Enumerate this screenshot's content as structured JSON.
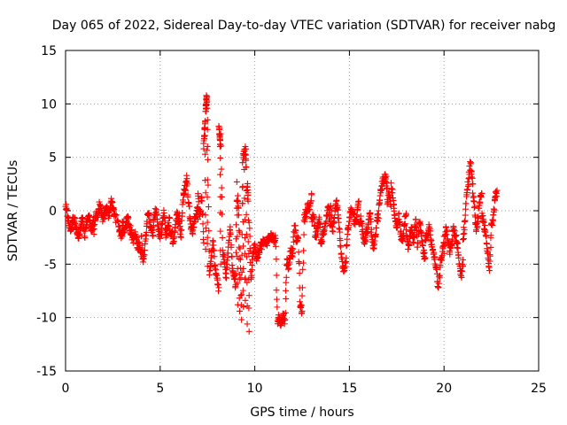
{
  "chart_data": {
    "type": "scatter",
    "title": "Day 065 of 2022, Sidereal Day-to-day VTEC variation (SDTVAR) for receiver nabg",
    "xlabel": "GPS time / hours",
    "ylabel": "SDTVAR / TECUs",
    "xlim": [
      0,
      25
    ],
    "ylim": [
      -15,
      15
    ],
    "xticks": [
      0,
      5,
      10,
      15,
      20,
      25
    ],
    "yticks": [
      -15,
      -10,
      -5,
      0,
      5,
      10,
      15
    ],
    "grid": true,
    "marker": "+",
    "color": "#ff0000",
    "series": [
      {
        "name": "SDTVAR",
        "points": [
          [
            0.0,
            0.4
          ],
          [
            0.1,
            -0.5
          ],
          [
            0.2,
            -1.4
          ],
          [
            0.3,
            -1.8
          ],
          [
            0.4,
            -0.6
          ],
          [
            0.5,
            -1.2
          ],
          [
            0.6,
            -2.1
          ],
          [
            0.7,
            -2.6
          ],
          [
            0.8,
            -1.5
          ],
          [
            0.9,
            -0.8
          ],
          [
            1.0,
            -2.4
          ],
          [
            1.1,
            -1.3
          ],
          [
            1.2,
            -0.5
          ],
          [
            1.3,
            -1.0
          ],
          [
            1.4,
            -1.9
          ],
          [
            1.5,
            -0.9
          ],
          [
            1.6,
            -0.1
          ],
          [
            1.7,
            -0.6
          ],
          [
            1.8,
            0.6
          ],
          [
            1.9,
            -0.4
          ],
          [
            2.0,
            -0.8
          ],
          [
            2.1,
            -0.1
          ],
          [
            2.2,
            0.3
          ],
          [
            2.3,
            -0.5
          ],
          [
            2.4,
            0.9
          ],
          [
            2.5,
            0.2
          ],
          [
            2.6,
            -0.3
          ],
          [
            2.8,
            -1.5
          ],
          [
            2.9,
            -2.0
          ],
          [
            3.0,
            -2.4
          ],
          [
            3.1,
            -1.8
          ],
          [
            3.2,
            -1.1
          ],
          [
            3.3,
            -0.6
          ],
          [
            3.4,
            -1.6
          ],
          [
            3.5,
            -2.3
          ],
          [
            3.6,
            -2.7
          ],
          [
            3.7,
            -2.2
          ],
          [
            3.8,
            -3.5
          ],
          [
            3.9,
            -3.0
          ],
          [
            4.0,
            -4.3
          ],
          [
            4.1,
            -4.8
          ],
          [
            4.2,
            -3.1
          ],
          [
            4.3,
            -1.0
          ],
          [
            4.4,
            -0.3
          ],
          [
            4.5,
            -1.5
          ],
          [
            4.6,
            -2.3
          ],
          [
            4.7,
            -0.4
          ],
          [
            4.8,
            0.1
          ],
          [
            4.9,
            -1.8
          ],
          [
            5.0,
            -2.6
          ],
          [
            5.1,
            -1.3
          ],
          [
            5.2,
            -0.2
          ],
          [
            5.3,
            -2.5
          ],
          [
            5.4,
            -1.5
          ],
          [
            5.5,
            -0.7
          ],
          [
            5.6,
            -2.0
          ],
          [
            5.7,
            -2.9
          ],
          [
            5.8,
            -1.3
          ],
          [
            5.9,
            -0.3
          ],
          [
            6.0,
            -1.2
          ],
          [
            6.1,
            -2.5
          ],
          [
            6.2,
            1.0
          ],
          [
            6.3,
            1.9
          ],
          [
            6.4,
            2.8
          ],
          [
            6.5,
            0.7
          ],
          [
            6.6,
            -0.8
          ],
          [
            6.7,
            -2.1
          ],
          [
            6.8,
            -1.0
          ],
          [
            6.9,
            -0.3
          ],
          [
            7.0,
            0.2
          ],
          [
            7.1,
            -0.5
          ],
          [
            7.2,
            1.3
          ],
          [
            7.3,
            -3.0
          ],
          [
            7.4,
            -3.6
          ],
          [
            7.5,
            -5.2
          ],
          [
            7.6,
            -6.0
          ],
          [
            7.7,
            -4.4
          ],
          [
            7.8,
            -2.9
          ],
          [
            7.9,
            -5.4
          ],
          [
            8.0,
            -6.3
          ],
          [
            8.1,
            -7.2
          ],
          [
            8.2,
            -5.0
          ],
          [
            8.3,
            -3.7
          ],
          [
            8.4,
            -4.9
          ],
          [
            8.5,
            -6.3
          ],
          [
            8.6,
            -3.4
          ],
          [
            8.7,
            -1.5
          ],
          [
            8.8,
            -5.1
          ],
          [
            8.9,
            -6.2
          ],
          [
            9.0,
            -6.9
          ],
          [
            9.1,
            -8.8
          ],
          [
            9.2,
            -9.4
          ],
          [
            9.3,
            -10.2
          ],
          [
            9.4,
            -9.0
          ],
          [
            9.5,
            -8.4
          ],
          [
            9.6,
            -10.6
          ],
          [
            9.7,
            -11.3
          ],
          [
            9.8,
            -6.4
          ],
          [
            9.9,
            -4.0
          ],
          [
            10.0,
            -3.2
          ],
          [
            10.1,
            -4.5
          ],
          [
            10.2,
            -3.7
          ],
          [
            10.3,
            -3.3
          ],
          [
            10.4,
            -3.1
          ],
          [
            10.5,
            -2.9
          ],
          [
            10.7,
            -2.8
          ],
          [
            10.8,
            -2.5
          ],
          [
            10.9,
            -2.3
          ],
          [
            11.0,
            -2.9
          ],
          [
            11.1,
            -2.6
          ],
          [
            11.2,
            -10.3
          ],
          [
            11.3,
            -10.0
          ],
          [
            11.4,
            -10.6
          ],
          [
            11.5,
            -9.8
          ],
          [
            11.6,
            -10.2
          ],
          [
            11.7,
            -4.5
          ],
          [
            11.8,
            -5.4
          ],
          [
            11.9,
            -3.5
          ],
          [
            12.0,
            -4.0
          ],
          [
            12.1,
            -1.4
          ],
          [
            12.2,
            -2.9
          ],
          [
            12.3,
            -2.6
          ],
          [
            12.4,
            -9.0
          ],
          [
            12.5,
            -9.4
          ],
          [
            12.6,
            -0.9
          ],
          [
            12.7,
            -0.2
          ],
          [
            12.8,
            0.5
          ],
          [
            12.9,
            0.1
          ],
          [
            13.0,
            1.5
          ],
          [
            13.1,
            -0.4
          ],
          [
            13.2,
            -2.3
          ],
          [
            13.3,
            -1.9
          ],
          [
            13.4,
            -0.6
          ],
          [
            13.5,
            -3.0
          ],
          [
            13.6,
            -2.3
          ],
          [
            13.7,
            -1.6
          ],
          [
            13.8,
            -0.5
          ],
          [
            13.9,
            0.3
          ],
          [
            14.0,
            -1.4
          ],
          [
            14.1,
            -1.9
          ],
          [
            14.2,
            -0.7
          ],
          [
            14.3,
            0.9
          ],
          [
            14.4,
            -0.4
          ],
          [
            14.5,
            -2.6
          ],
          [
            14.6,
            -4.4
          ],
          [
            14.7,
            -5.7
          ],
          [
            14.8,
            -4.9
          ],
          [
            14.9,
            -2.2
          ],
          [
            15.0,
            -1.0
          ],
          [
            15.1,
            0.1
          ],
          [
            15.2,
            -0.3
          ],
          [
            15.3,
            -1.3
          ],
          [
            15.4,
            -0.4
          ],
          [
            15.5,
            0.9
          ],
          [
            15.6,
            -0.5
          ],
          [
            15.7,
            -1.8
          ],
          [
            15.8,
            -3.1
          ],
          [
            15.9,
            -2.1
          ],
          [
            16.0,
            -1.3
          ],
          [
            16.1,
            -0.2
          ],
          [
            16.2,
            -2.7
          ],
          [
            16.3,
            -3.5
          ],
          [
            16.4,
            -2.2
          ],
          [
            16.5,
            -0.3
          ],
          [
            16.6,
            1.0
          ],
          [
            16.7,
            2.3
          ],
          [
            16.8,
            2.8
          ],
          [
            16.9,
            3.1
          ],
          [
            17.0,
            2.1
          ],
          [
            17.1,
            1.5
          ],
          [
            17.2,
            0.4
          ],
          [
            17.3,
            1.2
          ],
          [
            17.4,
            -0.7
          ],
          [
            17.5,
            -1.6
          ],
          [
            17.6,
            -0.3
          ],
          [
            17.7,
            -2.0
          ],
          [
            17.8,
            -2.6
          ],
          [
            17.9,
            -1.4
          ],
          [
            18.0,
            -0.4
          ],
          [
            18.1,
            -3.6
          ],
          [
            18.2,
            -2.3
          ],
          [
            18.3,
            -1.6
          ],
          [
            18.4,
            -3.0
          ],
          [
            18.5,
            -0.8
          ],
          [
            18.6,
            -3.4
          ],
          [
            18.7,
            -1.2
          ],
          [
            18.8,
            -2.0
          ],
          [
            18.9,
            -3.9
          ],
          [
            19.0,
            -4.4
          ],
          [
            19.1,
            -2.5
          ],
          [
            19.2,
            -1.3
          ],
          [
            19.3,
            -2.9
          ],
          [
            19.4,
            -3.7
          ],
          [
            19.5,
            -4.3
          ],
          [
            19.6,
            -5.5
          ],
          [
            19.7,
            -7.2
          ],
          [
            19.8,
            -5.1
          ],
          [
            19.9,
            -4.2
          ],
          [
            20.0,
            -2.4
          ],
          [
            20.1,
            -1.5
          ],
          [
            20.2,
            -2.8
          ],
          [
            20.3,
            -3.9
          ],
          [
            20.4,
            -3.2
          ],
          [
            20.5,
            -1.6
          ],
          [
            20.6,
            -2.4
          ],
          [
            20.7,
            -3.1
          ],
          [
            20.8,
            -5.0
          ],
          [
            20.9,
            -6.1
          ],
          [
            21.0,
            -4.6
          ],
          [
            21.1,
            -1.0
          ],
          [
            21.2,
            1.5
          ],
          [
            21.3,
            3.0
          ],
          [
            21.4,
            4.4
          ],
          [
            21.5,
            2.5
          ],
          [
            21.6,
            0.3
          ],
          [
            21.7,
            -1.8
          ],
          [
            21.8,
            -0.6
          ],
          [
            21.9,
            0.8
          ],
          [
            22.0,
            1.6
          ],
          [
            22.1,
            -1.1
          ],
          [
            22.2,
            -2.3
          ],
          [
            22.3,
            -4.0
          ],
          [
            22.4,
            -5.6
          ],
          [
            22.5,
            -1.3
          ],
          [
            22.6,
            -0.4
          ],
          [
            22.7,
            1.2
          ],
          [
            22.8,
            1.9
          ],
          [
            0.5,
            -0.7
          ],
          [
            1.5,
            -2.2
          ],
          [
            3.0,
            -1.0
          ],
          [
            4.0,
            -2.4
          ],
          [
            5.5,
            -2.1
          ],
          [
            6.0,
            -0.5
          ],
          [
            7.0,
            -0.8
          ],
          [
            7.5,
            -2.5
          ],
          [
            8.5,
            -5.5
          ],
          [
            9.5,
            -6.3
          ],
          [
            13.0,
            -0.7
          ],
          [
            14.0,
            0.4
          ],
          [
            15.5,
            -1.2
          ],
          [
            16.5,
            -1.0
          ],
          [
            17.0,
            0.6
          ],
          [
            18.0,
            -1.8
          ],
          [
            19.0,
            -2.8
          ],
          [
            20.0,
            -4.0
          ],
          [
            21.0,
            -2.7
          ],
          [
            22.0,
            -0.5
          ],
          [
            7.3,
            5.8
          ],
          [
            7.35,
            7.6
          ],
          [
            7.38,
            8.4
          ],
          [
            7.4,
            9.3
          ],
          [
            7.42,
            10.0
          ],
          [
            7.45,
            10.7
          ],
          [
            7.48,
            9.6
          ],
          [
            7.5,
            8.5
          ],
          [
            8.1,
            7.9
          ],
          [
            8.15,
            6.8
          ],
          [
            8.18,
            6.2
          ],
          [
            8.2,
            7.2
          ],
          [
            9.35,
            4.5
          ],
          [
            9.4,
            5.0
          ],
          [
            9.45,
            5.6
          ],
          [
            9.5,
            6.0
          ],
          [
            9.55,
            4.1
          ],
          [
            9.6,
            2.3
          ],
          [
            9.65,
            0.9
          ],
          [
            9.7,
            -1.1
          ],
          [
            9.05,
            2.7
          ],
          [
            9.1,
            1.4
          ],
          [
            9.15,
            -0.4
          ],
          [
            9.2,
            -2.0
          ],
          [
            7.0,
            1.6
          ],
          [
            6.4,
            3.3
          ],
          [
            16.9,
            3.4
          ],
          [
            17.2,
            2.6
          ]
        ]
      }
    ]
  }
}
